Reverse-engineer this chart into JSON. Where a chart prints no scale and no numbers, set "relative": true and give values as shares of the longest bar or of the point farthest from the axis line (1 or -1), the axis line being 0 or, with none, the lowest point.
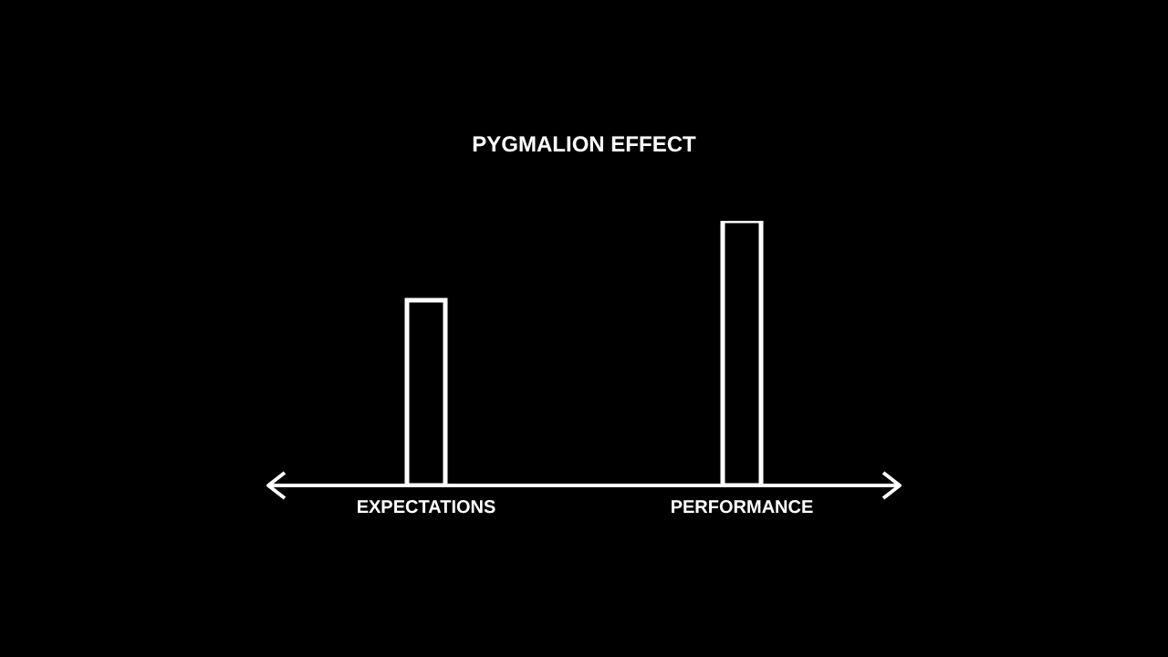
{
  "chart_data": {
    "type": "bar",
    "title": "PYGMALION EFFECT",
    "relative": true,
    "categories": [
      "EXPECTATIONS",
      "PERFORMANCE"
    ],
    "values": [
      0.7,
      1
    ],
    "color": "#ffffff",
    "grid": false,
    "legend": false
  }
}
